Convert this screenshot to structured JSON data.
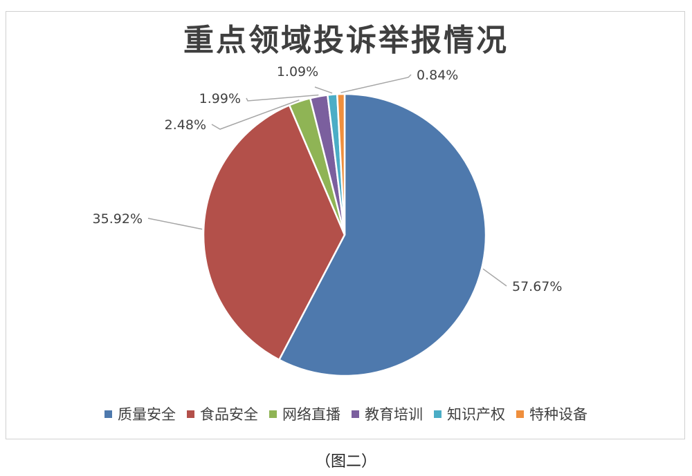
{
  "chart_data": {
    "type": "pie",
    "title": "重点领域投诉举报情况",
    "categories": [
      "质量安全",
      "食品安全",
      "网络直播",
      "教育培训",
      "知识产权",
      "特种设备"
    ],
    "values": [
      57.67,
      35.92,
      2.48,
      1.99,
      1.09,
      0.84
    ],
    "labels": [
      "57.67%",
      "35.92%",
      "2.48%",
      "1.99%",
      "1.09%",
      "0.84%"
    ],
    "colors": [
      "#4e79ad",
      "#b3504a",
      "#8fb455",
      "#7b5f9e",
      "#4badc6",
      "#ef8f3d"
    ],
    "legend_position": "bottom"
  },
  "caption": "（图二）"
}
